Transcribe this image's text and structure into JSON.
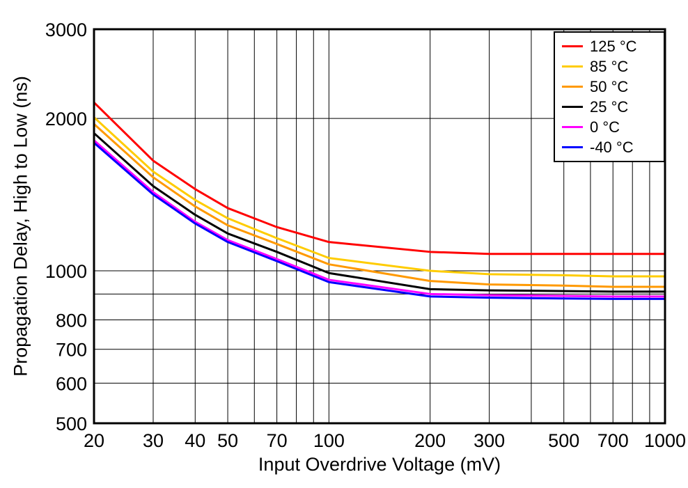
{
  "chart_data": {
    "type": "line",
    "title": "",
    "x_scale": "log",
    "y_scale": "log",
    "xlabel": "Input Overdrive Voltage (mV)",
    "ylabel": "Propagation Delay, High to Low (ns)",
    "xlim": [
      20,
      1000
    ],
    "ylim": [
      500,
      3000
    ],
    "grid": true,
    "legend_position": "top-right",
    "x": [
      20,
      30,
      40,
      50,
      70,
      100,
      200,
      300,
      500,
      700,
      1000
    ],
    "series": [
      {
        "id": "125c",
        "name": "125 °C",
        "color": "#ff0000",
        "values": [
          2150,
          1650,
          1450,
          1330,
          1220,
          1140,
          1090,
          1080,
          1080,
          1080,
          1080
        ]
      },
      {
        "id": "85c",
        "name": "85 °C",
        "color": "#ffcc00",
        "values": [
          2010,
          1570,
          1380,
          1270,
          1160,
          1060,
          1000,
          985,
          980,
          975,
          975
        ]
      },
      {
        "id": "50c",
        "name": "50 °C",
        "color": "#ff9900",
        "values": [
          1950,
          1530,
          1340,
          1230,
          1130,
          1030,
          955,
          940,
          935,
          930,
          930
        ]
      },
      {
        "id": "25c",
        "name": "25 °C",
        "color": "#000000",
        "values": [
          1870,
          1470,
          1290,
          1185,
          1090,
          990,
          920,
          915,
          912,
          910,
          910
        ]
      },
      {
        "id": "0c",
        "name": "0 °C",
        "color": "#ff00ff",
        "values": [
          1810,
          1430,
          1250,
          1150,
          1055,
          960,
          900,
          895,
          892,
          890,
          890
        ]
      },
      {
        "id": "minus40c",
        "name": "-40 °C",
        "color": "#0000ff",
        "values": [
          1790,
          1415,
          1240,
          1140,
          1045,
          950,
          890,
          885,
          882,
          880,
          880
        ]
      }
    ],
    "x_ticks": [
      20,
      30,
      40,
      50,
      70,
      100,
      200,
      300,
      500,
      700,
      1000
    ],
    "y_ticks": [
      500,
      600,
      700,
      800,
      1000,
      2000,
      3000
    ],
    "x_gridlines": [
      20,
      30,
      40,
      50,
      60,
      70,
      80,
      90,
      100,
      200,
      300,
      400,
      500,
      600,
      700,
      800,
      900,
      1000
    ],
    "y_gridlines": [
      500,
      600,
      700,
      800,
      900,
      1000,
      2000,
      3000
    ]
  }
}
